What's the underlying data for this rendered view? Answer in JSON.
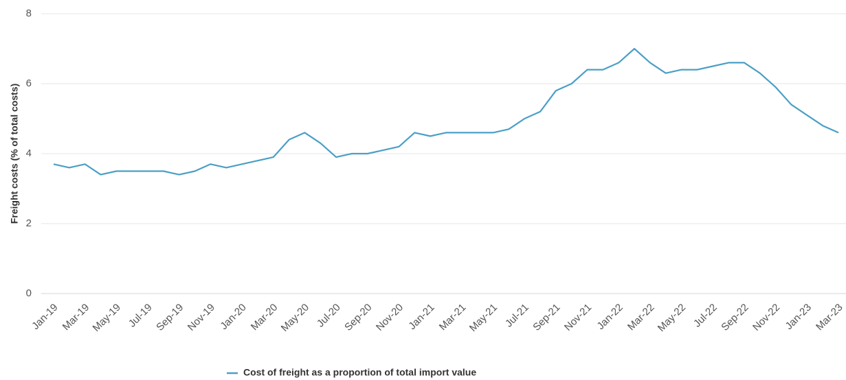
{
  "chart_data": {
    "type": "line",
    "y_label": "Freight costs (% of total costs)",
    "categories": [
      "Jan-19",
      null,
      "Mar-19",
      null,
      "May-19",
      null,
      "Jul-19",
      null,
      "Sep-19",
      null,
      "Nov-19",
      null,
      "Jan-20",
      null,
      "Mar-20",
      null,
      "May-20",
      null,
      "Jul-20",
      null,
      "Sep-20",
      null,
      "Nov-20",
      null,
      "Jan-21",
      null,
      "Mar-21",
      null,
      "May-21",
      null,
      "Jul-21",
      null,
      "Sep-21",
      null,
      "Nov-21",
      null,
      "Jan-22",
      null,
      "Mar-22",
      null,
      "May-22",
      null,
      "Jul-22",
      null,
      "Sep-22",
      null,
      "Nov-22",
      null,
      "Jan-23",
      null,
      "Mar-23"
    ],
    "series": [
      {
        "name": "Cost of freight as a proportion of total import value",
        "color": "#4a9fc6",
        "values": [
          3.7,
          3.6,
          3.7,
          3.4,
          3.5,
          3.5,
          3.5,
          3.5,
          3.4,
          3.5,
          3.7,
          3.6,
          3.7,
          3.8,
          3.9,
          4.4,
          4.6,
          4.3,
          3.9,
          4.0,
          4.0,
          4.1,
          4.2,
          4.6,
          4.5,
          4.6,
          4.6,
          4.6,
          4.6,
          4.7,
          5.0,
          5.2,
          5.8,
          6.0,
          6.4,
          6.4,
          6.6,
          7.0,
          6.6,
          6.3,
          6.4,
          6.4,
          6.5,
          6.6,
          6.6,
          6.3,
          5.9,
          5.4,
          5.1,
          4.8,
          4.6
        ]
      }
    ],
    "ylim": [
      0,
      8
    ],
    "yticks": [
      0,
      2,
      4,
      6,
      8
    ],
    "grid": true,
    "legend": "bottom"
  }
}
